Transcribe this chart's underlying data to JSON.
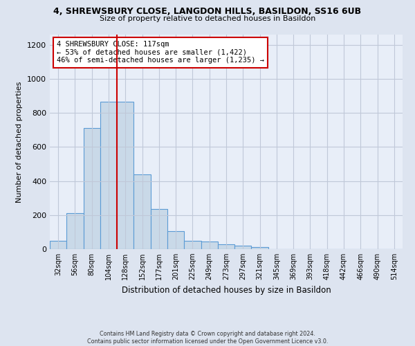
{
  "title_line1": "4, SHREWSBURY CLOSE, LANGDON HILLS, BASILDON, SS16 6UB",
  "title_line2": "Size of property relative to detached houses in Basildon",
  "xlabel": "Distribution of detached houses by size in Basildon",
  "ylabel": "Number of detached properties",
  "footnote": "Contains HM Land Registry data © Crown copyright and database right 2024.\nContains public sector information licensed under the Open Government Licence v3.0.",
  "bar_labels": [
    "32sqm",
    "56sqm",
    "80sqm",
    "104sqm",
    "128sqm",
    "152sqm",
    "177sqm",
    "201sqm",
    "225sqm",
    "249sqm",
    "273sqm",
    "297sqm",
    "321sqm",
    "345sqm",
    "369sqm",
    "393sqm",
    "418sqm",
    "442sqm",
    "466sqm",
    "490sqm",
    "514sqm"
  ],
  "bar_values": [
    50,
    210,
    710,
    865,
    865,
    440,
    235,
    105,
    48,
    43,
    30,
    22,
    14,
    0,
    0,
    0,
    0,
    0,
    0,
    0,
    0
  ],
  "bar_color": "#c9d9e8",
  "bar_edge_color": "#5b9bd5",
  "vline_x": 4.0,
  "vline_color": "#cc0000",
  "annotation_box_text": "4 SHREWSBURY CLOSE: 117sqm\n← 53% of detached houses are smaller (1,422)\n46% of semi-detached houses are larger (1,235) →",
  "annotation_box_color": "#cc0000",
  "ylim": [
    0,
    1260
  ],
  "yticks": [
    0,
    200,
    400,
    600,
    800,
    1000,
    1200
  ],
  "bg_color": "#dde4f0",
  "plot_bg_color": "#e8eef8",
  "grid_color": "#c0c8d8"
}
